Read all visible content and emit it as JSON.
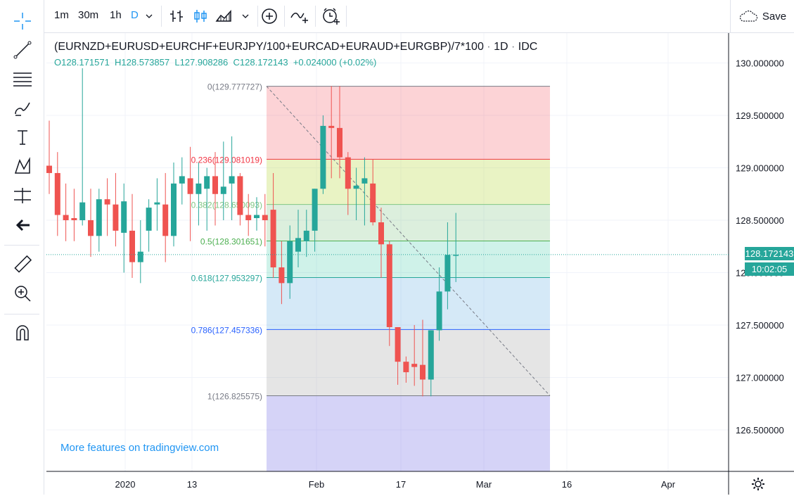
{
  "toolbar": {
    "timeframes": [
      "1m",
      "30m",
      "1h",
      "D"
    ],
    "active_timeframe": "D",
    "save_label": "Save"
  },
  "legend": {
    "title": "(EURNZD+EURUSD+EURCHF+EURJPY/100+EURCAD+EURAUD+EURGBP)/7*100",
    "interval": "1D",
    "source": "IDC",
    "open": "O128.171571",
    "high": "H128.573857",
    "low": "L127.908286",
    "close": "C128.172143",
    "change": "+0.024000 (+0.02%)"
  },
  "more_features": "More features on tradingview.com",
  "colors": {
    "up": "#26a69a",
    "down": "#ef5350",
    "accent": "#2196f3"
  },
  "chart_data": {
    "type": "candlestick",
    "y_axis": {
      "range": [
        126.05,
        130.35
      ],
      "ticks": [
        "126.500000",
        "127.000000",
        "127.500000",
        "128.000000",
        "128.500000",
        "129.000000",
        "129.500000",
        "130.000000"
      ]
    },
    "x_axis": {
      "tick_labels": [
        "2020",
        "13",
        "Feb",
        "17",
        "Mar",
        "16",
        "Apr"
      ]
    },
    "last_price": "128.172143",
    "countdown": "10:02:05",
    "candles": [
      {
        "o": 129.02,
        "h": 129.45,
        "l": 128.75,
        "c": 128.95
      },
      {
        "o": 128.95,
        "h": 129.15,
        "l": 128.35,
        "c": 128.55
      },
      {
        "o": 128.55,
        "h": 128.85,
        "l": 128.3,
        "c": 128.5
      },
      {
        "o": 128.52,
        "h": 128.8,
        "l": 128.3,
        "c": 128.5
      },
      {
        "o": 128.5,
        "h": 129.95,
        "l": 128.45,
        "c": 128.67
      },
      {
        "o": 128.5,
        "h": 128.8,
        "l": 128.15,
        "c": 128.35
      },
      {
        "o": 128.35,
        "h": 128.8,
        "l": 128.2,
        "c": 128.7
      },
      {
        "o": 128.7,
        "h": 128.9,
        "l": 128.35,
        "c": 128.65
      },
      {
        "o": 128.65,
        "h": 128.95,
        "l": 128.25,
        "c": 128.4
      },
      {
        "o": 128.38,
        "h": 128.85,
        "l": 128.0,
        "c": 128.68
      },
      {
        "o": 128.4,
        "h": 128.75,
        "l": 127.95,
        "c": 128.1
      },
      {
        "o": 128.1,
        "h": 128.5,
        "l": 127.9,
        "c": 128.2
      },
      {
        "o": 128.4,
        "h": 128.7,
        "l": 128.2,
        "c": 128.62
      },
      {
        "o": 128.65,
        "h": 128.9,
        "l": 128.4,
        "c": 128.67
      },
      {
        "o": 128.65,
        "h": 128.95,
        "l": 128.1,
        "c": 128.35
      },
      {
        "o": 128.35,
        "h": 129.05,
        "l": 128.25,
        "c": 128.85
      },
      {
        "o": 128.85,
        "h": 129.1,
        "l": 128.65,
        "c": 128.92
      },
      {
        "o": 128.9,
        "h": 129.2,
        "l": 128.3,
        "c": 128.75
      },
      {
        "o": 128.75,
        "h": 129.05,
        "l": 128.45,
        "c": 128.85
      },
      {
        "o": 128.8,
        "h": 129.0,
        "l": 128.4,
        "c": 128.92
      },
      {
        "o": 128.92,
        "h": 129.15,
        "l": 128.45,
        "c": 128.75
      },
      {
        "o": 128.75,
        "h": 129.25,
        "l": 128.5,
        "c": 128.82
      },
      {
        "o": 128.85,
        "h": 129.3,
        "l": 128.5,
        "c": 128.92
      },
      {
        "o": 128.92,
        "h": 128.95,
        "l": 128.45,
        "c": 128.55
      },
      {
        "o": 128.55,
        "h": 128.75,
        "l": 128.35,
        "c": 128.5
      },
      {
        "o": 128.52,
        "h": 128.72,
        "l": 128.4,
        "c": 128.55
      },
      {
        "o": 128.55,
        "h": 128.75,
        "l": 128.25,
        "c": 128.5
      },
      {
        "o": 128.6,
        "h": 128.95,
        "l": 127.95,
        "c": 128.05
      },
      {
        "o": 128.05,
        "h": 128.3,
        "l": 127.7,
        "c": 127.9
      },
      {
        "o": 127.9,
        "h": 128.45,
        "l": 127.75,
        "c": 128.3
      },
      {
        "o": 128.2,
        "h": 128.6,
        "l": 128.05,
        "c": 128.33
      },
      {
        "o": 128.3,
        "h": 128.6,
        "l": 128.15,
        "c": 128.4
      },
      {
        "o": 128.4,
        "h": 128.8,
        "l": 128.2,
        "c": 128.8
      },
      {
        "o": 128.8,
        "h": 129.5,
        "l": 128.75,
        "c": 129.4
      },
      {
        "o": 129.4,
        "h": 129.78,
        "l": 128.9,
        "c": 129.38
      },
      {
        "o": 129.38,
        "h": 129.78,
        "l": 128.9,
        "c": 129.1
      },
      {
        "o": 129.1,
        "h": 129.15,
        "l": 128.55,
        "c": 128.8
      },
      {
        "o": 128.8,
        "h": 129.0,
        "l": 128.5,
        "c": 128.83
      },
      {
        "o": 128.85,
        "h": 129.1,
        "l": 128.45,
        "c": 128.9
      },
      {
        "o": 128.85,
        "h": 129.08,
        "l": 128.45,
        "c": 128.48
      },
      {
        "o": 128.48,
        "h": 128.62,
        "l": 127.95,
        "c": 128.27
      },
      {
        "o": 128.27,
        "h": 128.3,
        "l": 127.3,
        "c": 127.48
      },
      {
        "o": 127.48,
        "h": 127.48,
        "l": 126.93,
        "c": 127.15
      },
      {
        "o": 127.15,
        "h": 127.2,
        "l": 126.95,
        "c": 127.05
      },
      {
        "o": 127.13,
        "h": 127.5,
        "l": 126.92,
        "c": 127.1
      },
      {
        "o": 127.12,
        "h": 127.55,
        "l": 126.82,
        "c": 126.98
      },
      {
        "o": 126.98,
        "h": 127.45,
        "l": 126.82,
        "c": 127.45
      },
      {
        "o": 127.45,
        "h": 128.05,
        "l": 127.35,
        "c": 127.82
      },
      {
        "o": 127.82,
        "h": 128.48,
        "l": 127.65,
        "c": 128.17
      },
      {
        "o": 128.17,
        "h": 128.57,
        "l": 127.91,
        "c": 128.17
      }
    ],
    "fibonacci": {
      "levels": [
        {
          "ratio": "0",
          "value": 129.777727,
          "label": "0(129.777727)",
          "line": "#787b86",
          "fill": "rgba(242,54,69,0.22)"
        },
        {
          "ratio": "0.236",
          "value": 129.081019,
          "label": "0.236(129.081019)",
          "line": "#f23645",
          "fill": "rgba(193,220,85,0.35)"
        },
        {
          "ratio": "0.382",
          "value": 128.650093,
          "label": "0.382(128.650093)",
          "line": "#81c784",
          "fill": "rgba(129,199,132,0.28)"
        },
        {
          "ratio": "0.5",
          "value": 128.301651,
          "label": "0.5(128.301651)",
          "line": "#4caf50",
          "fill": "rgba(38,198,154,0.22)"
        },
        {
          "ratio": "0.618",
          "value": 127.953297,
          "label": "0.618(127.953297)",
          "line": "#26a69a",
          "fill": "rgba(66,156,220,0.22)"
        },
        {
          "ratio": "0.786",
          "value": 127.457336,
          "label": "0.786(127.457336)",
          "line": "#2962ff",
          "fill": "rgba(160,160,160,0.28)"
        },
        {
          "ratio": "1",
          "value": 126.825575,
          "label": "1(126.825575)",
          "line": "#787b86",
          "fill": "rgba(103,96,225,0.28)"
        }
      ],
      "trend_start": 129.777727,
      "trend_end": 126.825575
    }
  }
}
